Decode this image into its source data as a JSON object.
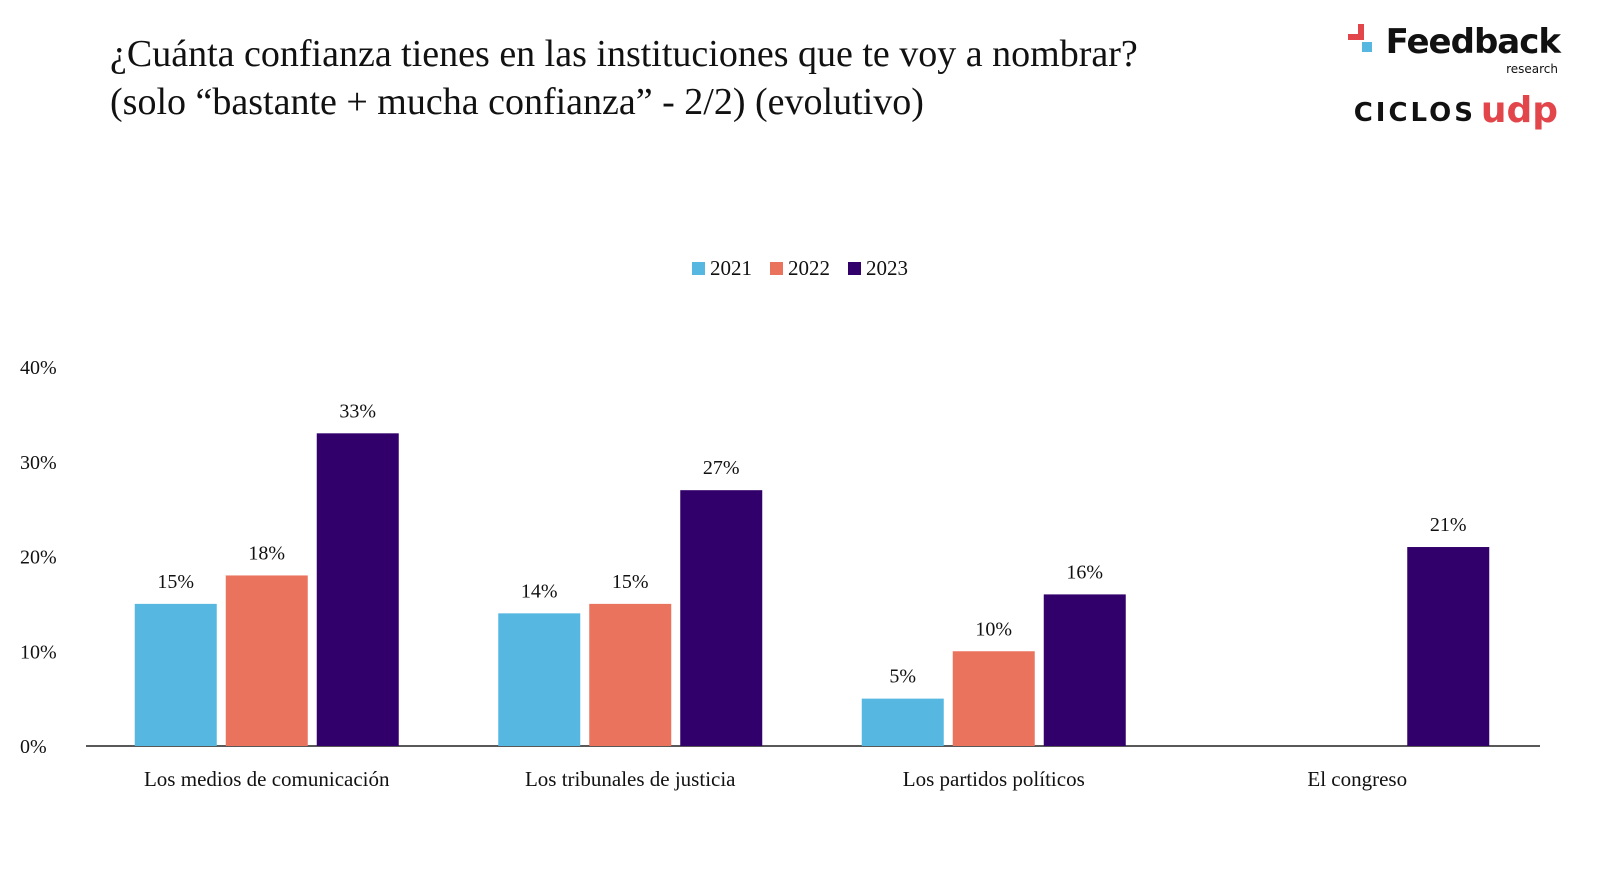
{
  "header": {
    "title": "¿Cuánta confianza tienes en las instituciones que te voy a nombrar? (solo “bastante + mucha confianza” - 2/2) (evolutivo)"
  },
  "logos": {
    "feedback_word": "Feedback",
    "feedback_sub": "research",
    "ciclos_word": "CICLOS",
    "udp_word": "udp"
  },
  "chart_data": {
    "type": "bar",
    "title": "¿Cuánta confianza tienes en las instituciones que te voy a nombrar? (solo “bastante + mucha confianza” - 2/2) (evolutivo)",
    "categories": [
      "Los medios de comunicación",
      "Los tribunales de justicia",
      "Los partidos políticos",
      "El congreso"
    ],
    "series": [
      {
        "name": "2021",
        "color": "#56b7e1",
        "values": [
          15,
          14,
          5,
          null
        ],
        "labels": [
          "15%",
          "14%",
          "5%",
          ""
        ]
      },
      {
        "name": "2022",
        "color": "#ea735e",
        "values": [
          18,
          15,
          10,
          null
        ],
        "labels": [
          "18%",
          "15%",
          "10%",
          ""
        ]
      },
      {
        "name": "2023",
        "color": "#32006b",
        "values": [
          33,
          27,
          16,
          21
        ],
        "labels": [
          "33%",
          "27%",
          "16%",
          "21%"
        ]
      }
    ],
    "yticks": [
      "0%",
      "10%",
      "20%",
      "30%",
      "40%"
    ],
    "ylim": [
      0,
      40
    ],
    "xlabel": "",
    "ylabel": "",
    "grid": false,
    "legend_position": "top-center"
  }
}
